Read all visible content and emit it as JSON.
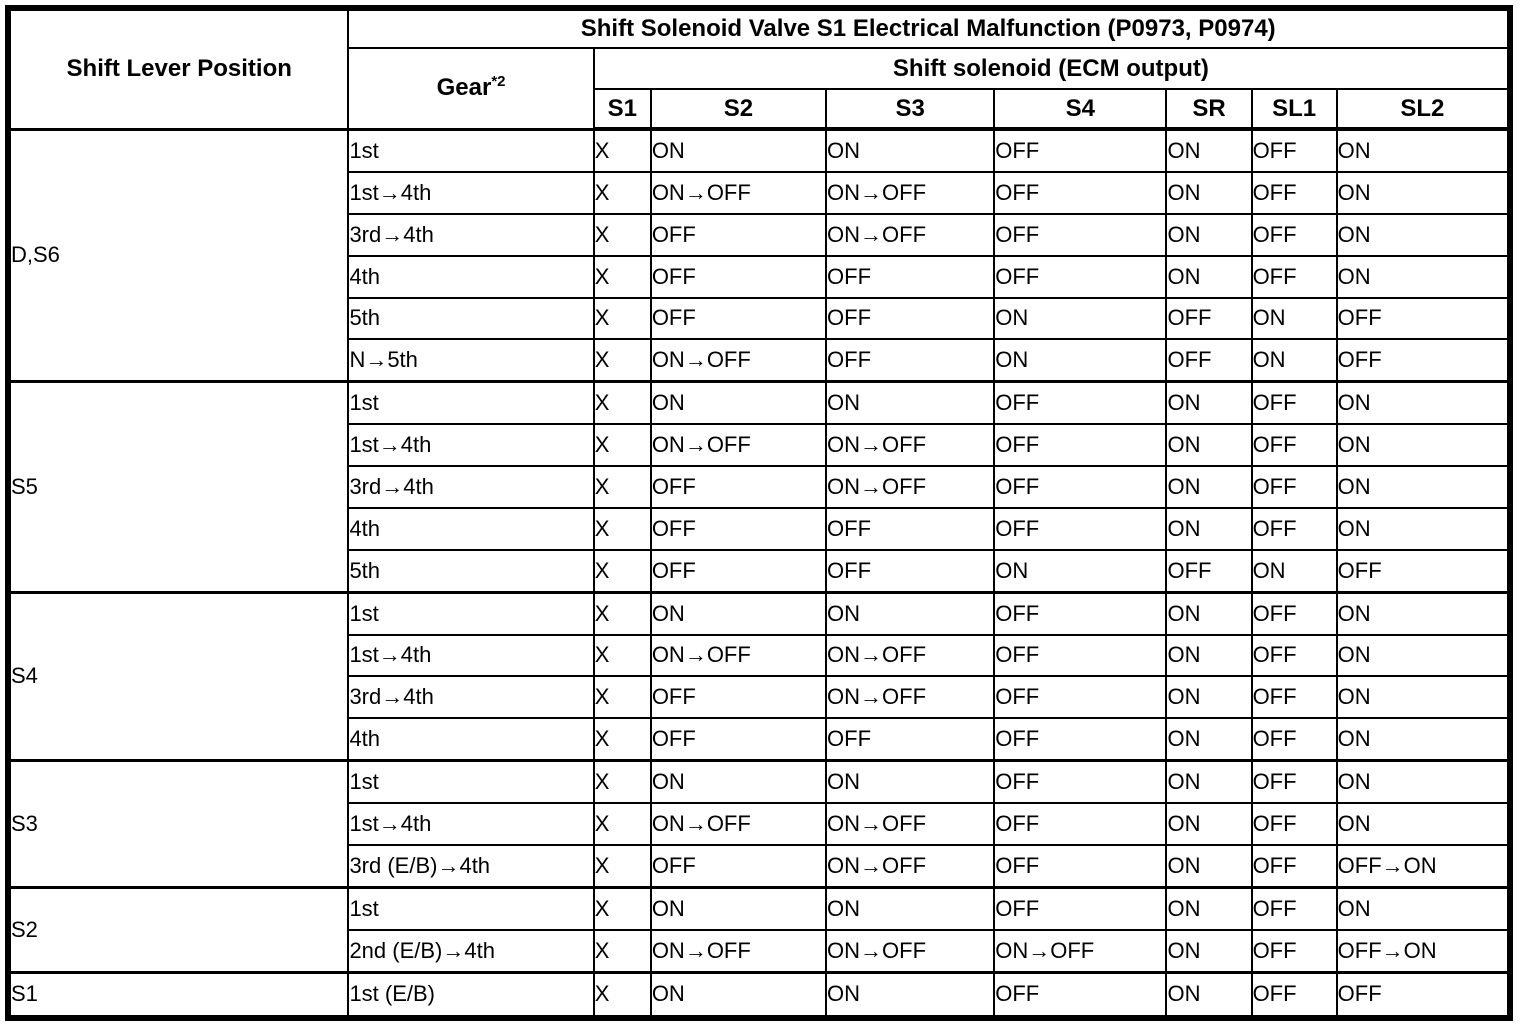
{
  "colors": {
    "border": "#000000",
    "text": "#000000",
    "background": "#ffffff"
  },
  "table": {
    "header": {
      "col1": "Shift Lever Position",
      "title": "Shift Solenoid Valve S1 Electrical Malfunction (P0973, P0974)",
      "gear_label": "Gear",
      "gear_superscript": "*2",
      "solenoid_group": "Shift solenoid (ECM output)",
      "solenoid_cols": [
        "S1",
        "S2",
        "S3",
        "S4",
        "SR",
        "SL1",
        "SL2"
      ]
    },
    "groups": [
      {
        "position": "D,S6",
        "rows": [
          {
            "gear": "1st",
            "values": [
              "X",
              "ON",
              "ON",
              "OFF",
              "ON",
              "OFF",
              "ON"
            ]
          },
          {
            "gear": "1st→4th",
            "values": [
              "X",
              "ON→OFF",
              "ON→OFF",
              "OFF",
              "ON",
              "OFF",
              "ON"
            ]
          },
          {
            "gear": "3rd→4th",
            "values": [
              "X",
              "OFF",
              "ON→OFF",
              "OFF",
              "ON",
              "OFF",
              "ON"
            ]
          },
          {
            "gear": "4th",
            "values": [
              "X",
              "OFF",
              "OFF",
              "OFF",
              "ON",
              "OFF",
              "ON"
            ]
          },
          {
            "gear": "5th",
            "values": [
              "X",
              "OFF",
              "OFF",
              "ON",
              "OFF",
              "ON",
              "OFF"
            ]
          },
          {
            "gear": "N→5th",
            "values": [
              "X",
              "ON→OFF",
              "OFF",
              "ON",
              "OFF",
              "ON",
              "OFF"
            ]
          }
        ]
      },
      {
        "position": "S5",
        "rows": [
          {
            "gear": "1st",
            "values": [
              "X",
              "ON",
              "ON",
              "OFF",
              "ON",
              "OFF",
              "ON"
            ]
          },
          {
            "gear": "1st→4th",
            "values": [
              "X",
              "ON→OFF",
              "ON→OFF",
              "OFF",
              "ON",
              "OFF",
              "ON"
            ]
          },
          {
            "gear": "3rd→4th",
            "values": [
              "X",
              "OFF",
              "ON→OFF",
              "OFF",
              "ON",
              "OFF",
              "ON"
            ]
          },
          {
            "gear": "4th",
            "values": [
              "X",
              "OFF",
              "OFF",
              "OFF",
              "ON",
              "OFF",
              "ON"
            ]
          },
          {
            "gear": "5th",
            "values": [
              "X",
              "OFF",
              "OFF",
              "ON",
              "OFF",
              "ON",
              "OFF"
            ]
          }
        ]
      },
      {
        "position": "S4",
        "rows": [
          {
            "gear": "1st",
            "values": [
              "X",
              "ON",
              "ON",
              "OFF",
              "ON",
              "OFF",
              "ON"
            ]
          },
          {
            "gear": "1st→4th",
            "values": [
              "X",
              "ON→OFF",
              "ON→OFF",
              "OFF",
              "ON",
              "OFF",
              "ON"
            ]
          },
          {
            "gear": "3rd→4th",
            "values": [
              "X",
              "OFF",
              "ON→OFF",
              "OFF",
              "ON",
              "OFF",
              "ON"
            ]
          },
          {
            "gear": "4th",
            "values": [
              "X",
              "OFF",
              "OFF",
              "OFF",
              "ON",
              "OFF",
              "ON"
            ]
          }
        ]
      },
      {
        "position": "S3",
        "rows": [
          {
            "gear": "1st",
            "values": [
              "X",
              "ON",
              "ON",
              "OFF",
              "ON",
              "OFF",
              "ON"
            ]
          },
          {
            "gear": "1st→4th",
            "values": [
              "X",
              "ON→OFF",
              "ON→OFF",
              "OFF",
              "ON",
              "OFF",
              "ON"
            ]
          },
          {
            "gear": "3rd (E/B)→4th",
            "values": [
              "X",
              "OFF",
              "ON→OFF",
              "OFF",
              "ON",
              "OFF",
              "OFF→ON"
            ]
          }
        ]
      },
      {
        "position": "S2",
        "rows": [
          {
            "gear": "1st",
            "values": [
              "X",
              "ON",
              "ON",
              "OFF",
              "ON",
              "OFF",
              "ON"
            ]
          },
          {
            "gear": "2nd (E/B)→4th",
            "values": [
              "X",
              "ON→OFF",
              "ON→OFF",
              "ON→OFF",
              "ON",
              "OFF",
              "OFF→ON"
            ]
          }
        ]
      },
      {
        "position": "S1",
        "rows": [
          {
            "gear": "1st (E/B)",
            "values": [
              "X",
              "ON",
              "ON",
              "OFF",
              "ON",
              "OFF",
              "OFF"
            ]
          }
        ]
      }
    ]
  }
}
